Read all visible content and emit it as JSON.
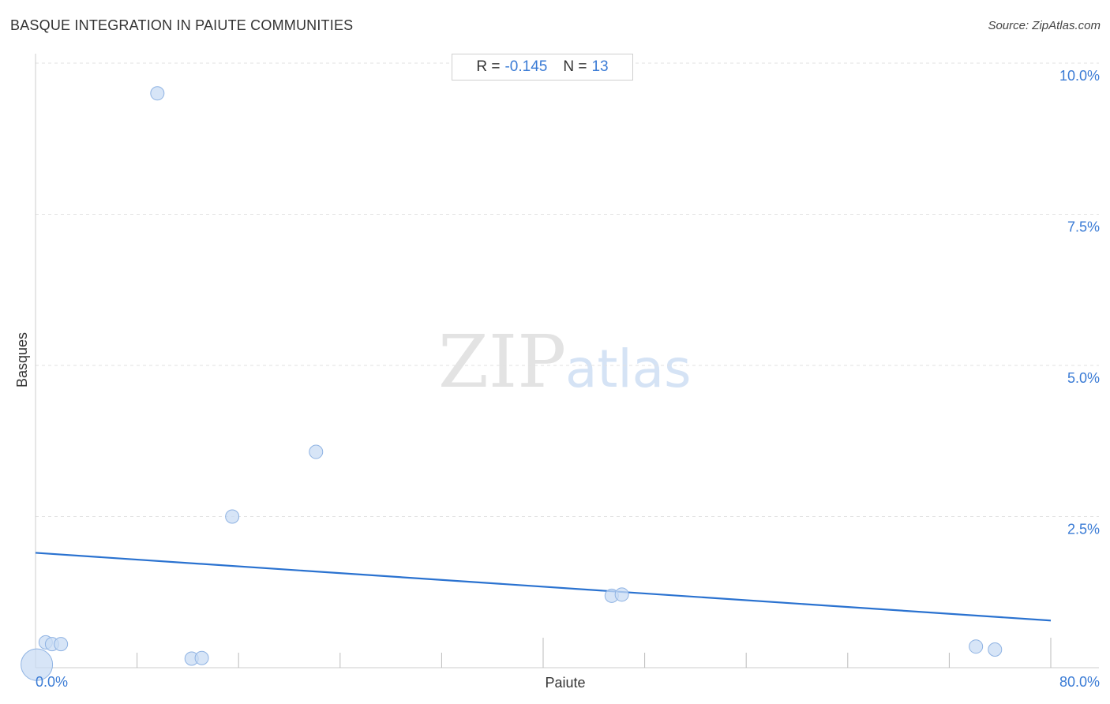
{
  "header": {
    "title": "BASQUE INTEGRATION IN PAIUTE COMMUNITIES",
    "source": "Source: ZipAtlas.com"
  },
  "stats": {
    "r_label": "R =",
    "r_value": "-0.145",
    "n_label": "N =",
    "n_value": "13"
  },
  "watermark": {
    "zip": "ZIP",
    "atlas": "atlas"
  },
  "colors": {
    "point_fill": "#c9dcf4",
    "point_stroke": "#8fb3e3",
    "trend_line": "#2a72d0",
    "tick_label": "#3a7bd5",
    "grid": "#e2e2e2"
  },
  "chart_data": {
    "type": "scatter",
    "title": "BASQUE INTEGRATION IN PAIUTE COMMUNITIES",
    "xlabel": "Paiute",
    "ylabel": "Basques",
    "xlim": [
      0,
      80
    ],
    "ylim": [
      0,
      10
    ],
    "x_tick_labels": [
      "0.0%",
      "80.0%"
    ],
    "y_ticks": [
      {
        "value": 10,
        "label": "10.0%"
      },
      {
        "value": 7.5,
        "label": "7.5%"
      },
      {
        "value": 5,
        "label": "5.0%"
      },
      {
        "value": 2.5,
        "label": "2.5%"
      }
    ],
    "grid": "horizontal dashed",
    "points": [
      {
        "x": 0.1,
        "y": 0.05,
        "size": "large"
      },
      {
        "x": 0.8,
        "y": 0.42,
        "size": "normal"
      },
      {
        "x": 1.3,
        "y": 0.39,
        "size": "normal"
      },
      {
        "x": 2.0,
        "y": 0.39,
        "size": "normal"
      },
      {
        "x": 9.6,
        "y": 9.5,
        "size": "normal"
      },
      {
        "x": 12.3,
        "y": 0.15,
        "size": "normal"
      },
      {
        "x": 13.1,
        "y": 0.16,
        "size": "normal"
      },
      {
        "x": 15.5,
        "y": 2.5,
        "size": "normal"
      },
      {
        "x": 22.1,
        "y": 3.57,
        "size": "normal"
      },
      {
        "x": 45.4,
        "y": 1.19,
        "size": "normal"
      },
      {
        "x": 46.2,
        "y": 1.21,
        "size": "normal"
      },
      {
        "x": 74.1,
        "y": 0.35,
        "size": "normal"
      },
      {
        "x": 75.6,
        "y": 0.3,
        "size": "normal"
      }
    ],
    "trend": {
      "x": [
        0,
        80
      ],
      "y": [
        1.9,
        0.78
      ]
    }
  }
}
